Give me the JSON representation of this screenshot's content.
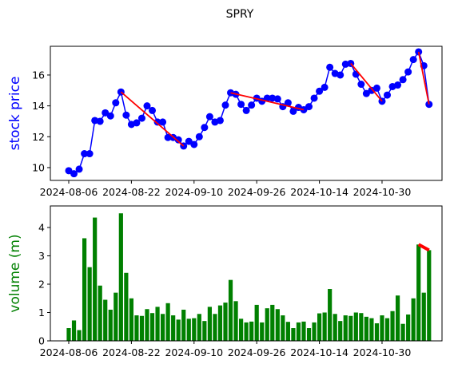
{
  "chart_data": [
    {
      "type": "line",
      "title": "SPRY",
      "ylabel": "stock price",
      "color": "#0000ff",
      "marker": true,
      "categories": [
        "2024-08-06",
        null,
        null,
        null,
        null,
        null,
        null,
        null,
        null,
        null,
        null,
        null,
        "2024-08-22",
        null,
        null,
        null,
        null,
        null,
        null,
        null,
        null,
        null,
        null,
        null,
        "2024-09-10",
        null,
        null,
        null,
        null,
        null,
        null,
        null,
        null,
        null,
        null,
        null,
        "2024-09-26",
        null,
        null,
        null,
        null,
        null,
        null,
        null,
        null,
        null,
        null,
        null,
        "2024-10-14",
        null,
        null,
        null,
        null,
        null,
        null,
        null,
        null,
        null,
        null,
        null,
        "2024-10-30",
        null,
        null,
        null,
        null,
        null,
        null,
        null,
        null,
        null
      ],
      "values": [
        9.8,
        9.6,
        9.9,
        10.9,
        10.9,
        13.05,
        13.0,
        13.55,
        13.35,
        14.2,
        14.9,
        13.4,
        12.8,
        12.9,
        13.2,
        14.0,
        13.7,
        12.95,
        12.95,
        11.95,
        11.95,
        11.8,
        11.4,
        11.7,
        11.5,
        12.0,
        12.6,
        13.3,
        12.95,
        13.05,
        14.05,
        14.85,
        14.75,
        14.1,
        13.7,
        14.05,
        14.5,
        14.3,
        14.5,
        14.5,
        14.45,
        13.95,
        14.2,
        13.65,
        13.9,
        13.75,
        13.95,
        14.5,
        14.95,
        15.2,
        16.5,
        16.1,
        16.0,
        16.7,
        16.75,
        16.05,
        15.4,
        14.8,
        15.0,
        15.15,
        14.3,
        14.7,
        15.25,
        15.35,
        15.7,
        16.2,
        17.0,
        17.5,
        16.6,
        14.1
      ],
      "segments": [
        {
          "x": [
            10,
            22
          ],
          "y": [
            14.9,
            11.4
          ]
        },
        {
          "x": [
            31,
            45
          ],
          "y": [
            14.85,
            13.75
          ]
        },
        {
          "x": [
            54,
            60
          ],
          "y": [
            16.75,
            14.3
          ]
        },
        {
          "x": [
            67,
            69
          ],
          "y": [
            17.5,
            14.1
          ]
        }
      ],
      "segment_color": "#ff0000",
      "ylim": [
        9.17,
        17.86
      ],
      "yticks": [
        10,
        12,
        14,
        16
      ]
    },
    {
      "type": "bar",
      "ylabel": "volume (m)",
      "color": "#008000",
      "categories": [
        "2024-08-06",
        null,
        null,
        null,
        null,
        null,
        null,
        null,
        null,
        null,
        null,
        null,
        "2024-08-22",
        null,
        null,
        null,
        null,
        null,
        null,
        null,
        null,
        null,
        null,
        null,
        "2024-09-10",
        null,
        null,
        null,
        null,
        null,
        null,
        null,
        null,
        null,
        null,
        null,
        "2024-09-26",
        null,
        null,
        null,
        null,
        null,
        null,
        null,
        null,
        null,
        null,
        null,
        "2024-10-14",
        null,
        null,
        null,
        null,
        null,
        null,
        null,
        null,
        null,
        null,
        null,
        "2024-10-30",
        null,
        null,
        null,
        null,
        null,
        null,
        null,
        null,
        null
      ],
      "values": [
        0.45,
        0.72,
        0.38,
        3.62,
        2.6,
        4.35,
        1.95,
        1.45,
        1.1,
        1.7,
        4.5,
        2.4,
        1.5,
        0.9,
        0.88,
        1.12,
        0.98,
        1.2,
        0.95,
        1.33,
        0.9,
        0.75,
        1.1,
        0.78,
        0.8,
        0.95,
        0.7,
        1.2,
        0.95,
        1.25,
        1.35,
        2.15,
        1.4,
        0.78,
        0.65,
        0.68,
        1.27,
        0.65,
        1.15,
        1.27,
        1.12,
        0.9,
        0.67,
        0.45,
        0.65,
        0.68,
        0.45,
        0.65,
        0.97,
        1.0,
        1.83,
        0.95,
        0.7,
        0.9,
        0.88,
        1.0,
        0.98,
        0.85,
        0.8,
        0.62,
        0.9,
        0.8,
        1.05,
        1.6,
        0.6,
        0.93,
        1.5,
        3.4,
        1.7,
        3.2
      ],
      "segments": [
        {
          "x": [
            67,
            69
          ],
          "y": [
            3.4,
            3.2
          ]
        }
      ],
      "segment_color": "#ff0000",
      "ylim": [
        0,
        4.76
      ],
      "yticks": [
        0,
        1,
        2,
        3,
        4
      ]
    }
  ]
}
